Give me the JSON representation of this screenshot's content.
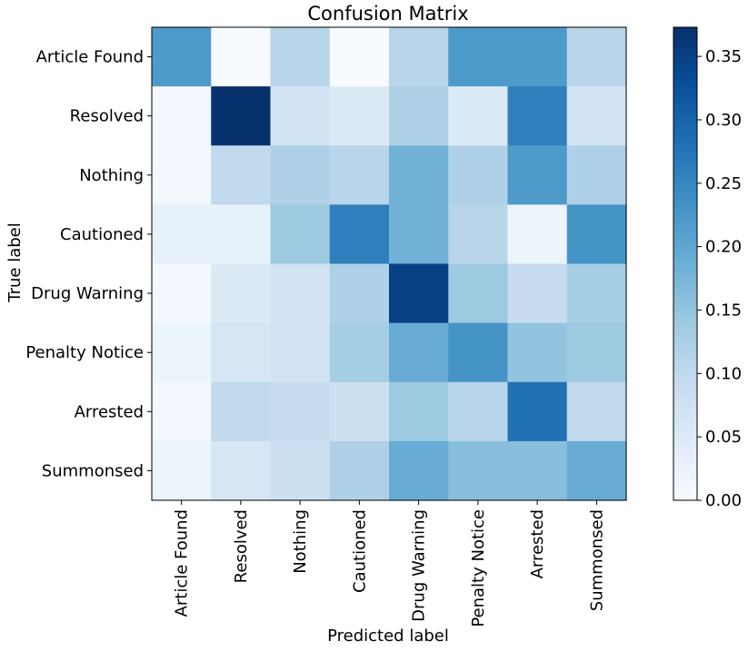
{
  "chart_data": {
    "type": "heatmap",
    "title": "Confusion Matrix",
    "xlabel": "Predicted label",
    "ylabel": "True label",
    "x_categories": [
      "Article Found",
      "Resolved",
      "Nothing",
      "Cautioned",
      "Drug Warning",
      "Penalty Notice",
      "Arrested",
      "Summonsed"
    ],
    "y_categories": [
      "Article Found",
      "Resolved",
      "Nothing",
      "Cautioned",
      "Drug Warning",
      "Penalty Notice",
      "Arrested",
      "Summonsed"
    ],
    "values": [
      [
        0.22,
        0.0,
        0.11,
        0.0,
        0.11,
        0.22,
        0.22,
        0.11
      ],
      [
        0.01,
        0.37,
        0.07,
        0.05,
        0.12,
        0.05,
        0.26,
        0.07
      ],
      [
        0.01,
        0.1,
        0.12,
        0.11,
        0.18,
        0.12,
        0.22,
        0.12
      ],
      [
        0.03,
        0.03,
        0.14,
        0.26,
        0.18,
        0.11,
        0.02,
        0.23
      ],
      [
        0.01,
        0.05,
        0.07,
        0.12,
        0.35,
        0.14,
        0.09,
        0.13
      ],
      [
        0.02,
        0.06,
        0.07,
        0.13,
        0.19,
        0.23,
        0.15,
        0.14
      ],
      [
        0.01,
        0.1,
        0.09,
        0.08,
        0.14,
        0.11,
        0.28,
        0.1
      ],
      [
        0.02,
        0.06,
        0.08,
        0.12,
        0.19,
        0.16,
        0.16,
        0.19
      ]
    ],
    "colorbar": {
      "colormap": "Blues",
      "range": [
        0.0,
        0.373
      ],
      "ticks": [
        0.0,
        0.05,
        0.1,
        0.15,
        0.2,
        0.25,
        0.3,
        0.35
      ],
      "tick_labels": [
        "0.00",
        "0.05",
        "0.10",
        "0.15",
        "0.20",
        "0.25",
        "0.30",
        "0.35"
      ]
    },
    "grid": false
  }
}
